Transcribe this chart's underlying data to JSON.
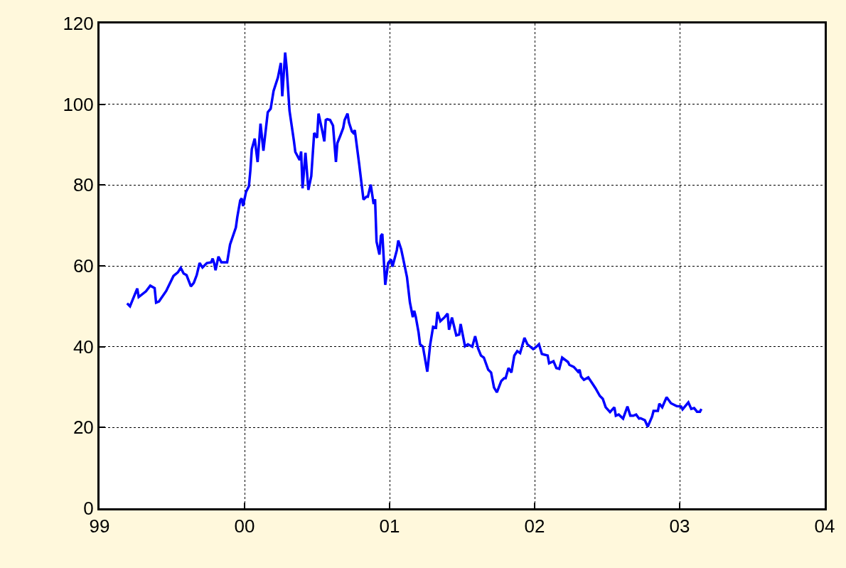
{
  "chart_data": {
    "type": "line",
    "x": [
      1999.19,
      1999.21,
      1999.26,
      1999.27,
      1999.32,
      1999.35,
      1999.38,
      1999.39,
      1999.41,
      1999.46,
      1999.51,
      1999.54,
      1999.56,
      1999.58,
      1999.6,
      1999.63,
      1999.65,
      1999.67,
      1999.69,
      1999.71,
      1999.74,
      1999.77,
      1999.78,
      1999.79,
      1999.8,
      1999.82,
      1999.84,
      1999.88,
      1999.9,
      1999.94,
      1999.95,
      1999.97,
      1999.98,
      1999.99,
      2000.01,
      2000.03,
      2000.04,
      2000.05,
      2000.07,
      2000.09,
      2000.09,
      2000.11,
      2000.13,
      2000.14,
      2000.16,
      2000.18,
      2000.2,
      2000.23,
      2000.25,
      2000.26,
      2000.28,
      2000.29,
      2000.31,
      2000.34,
      2000.35,
      2000.38,
      2000.39,
      2000.4,
      2000.42,
      2000.44,
      2000.46,
      2000.48,
      2000.5,
      2000.51,
      2000.54,
      2000.55,
      2000.56,
      2000.57,
      2000.59,
      2000.61,
      2000.63,
      2000.64,
      2000.66,
      2000.68,
      2000.69,
      2000.71,
      2000.72,
      2000.74,
      2000.75,
      2000.76,
      2000.79,
      2000.8,
      2000.82,
      2000.84,
      2000.85,
      2000.87,
      2000.89,
      2000.9,
      2000.91,
      2000.93,
      2000.94,
      2000.95,
      2000.97,
      2000.99,
      2001.01,
      2001.02,
      2001.05,
      2001.06,
      2001.08,
      2001.1,
      2001.12,
      2001.14,
      2001.16,
      2001.17,
      2001.18,
      2001.2,
      2001.21,
      2001.23,
      2001.26,
      2001.28,
      2001.3,
      2001.32,
      2001.33,
      2001.35,
      2001.38,
      2001.4,
      2001.41,
      2001.43,
      2001.46,
      2001.48,
      2001.49,
      2001.52,
      2001.54,
      2001.57,
      2001.59,
      2001.61,
      2001.63,
      2001.65,
      2001.68,
      2001.7,
      2001.72,
      2001.74,
      2001.77,
      2001.79,
      2001.8,
      2001.82,
      2001.84,
      2001.86,
      2001.88,
      2001.9,
      2001.93,
      2001.95,
      2001.99,
      2002.01,
      2002.03,
      2002.05,
      2002.09,
      2002.1,
      2002.13,
      2002.15,
      2002.17,
      2002.19,
      2002.23,
      2002.24,
      2002.27,
      2002.3,
      2002.31,
      2002.32,
      2002.34,
      2002.37,
      2002.4,
      2002.42,
      2002.45,
      2002.47,
      2002.49,
      2002.52,
      2002.55,
      2002.56,
      2002.58,
      2002.61,
      2002.64,
      2002.66,
      2002.68,
      2002.7,
      2002.72,
      2002.73,
      2002.76,
      2002.78,
      2002.81,
      2002.82,
      2002.85,
      2002.86,
      2002.88,
      2002.91,
      2002.94,
      2002.98,
      2003.01,
      2003.02,
      2003.06,
      2003.08,
      2003.1,
      2003.12,
      2003.14,
      2003.15
    ],
    "series": [
      {
        "color": "#0000ff",
        "values": [
          50.7,
          50,
          54.4,
          52.3,
          53.7,
          55.1,
          54.5,
          50.9,
          51.2,
          53.8,
          57.5,
          58.4,
          59.5,
          58.1,
          57.7,
          54.9,
          55.8,
          57.7,
          60.7,
          59.6,
          60.7,
          60.9,
          61.8,
          60.7,
          58.9,
          62.3,
          60.9,
          60.9,
          65.3,
          69.5,
          72.1,
          76.2,
          76.7,
          74.8,
          78.3,
          79.7,
          83.6,
          88.9,
          91.5,
          85.7,
          85.7,
          95.2,
          88.5,
          91.7,
          98,
          98.9,
          103.3,
          106.6,
          110.2,
          102,
          112.8,
          109.1,
          98.4,
          91,
          88.2,
          86.2,
          88.3,
          79.2,
          88,
          78.8,
          82.2,
          92.9,
          91.7,
          97.7,
          92.7,
          90.8,
          96.1,
          96.3,
          96.1,
          94.7,
          85.7,
          90.4,
          92.2,
          94.1,
          96.1,
          97.7,
          95.5,
          93.3,
          92.9,
          93.6,
          85.3,
          82.3,
          76.4,
          77.1,
          77.1,
          80.1,
          75.3,
          76.5,
          66,
          62.8,
          67.4,
          67.9,
          55.3,
          60.7,
          61.6,
          59.8,
          63.9,
          66.3,
          64.1,
          60.7,
          57.2,
          51,
          47.3,
          48.9,
          47.5,
          43.5,
          40.6,
          40,
          33.8,
          40.5,
          44.9,
          44.7,
          48.6,
          46.3,
          47.3,
          48.2,
          44.2,
          47.2,
          42.8,
          43,
          45.6,
          40.1,
          40.6,
          40,
          42.6,
          39.6,
          37.8,
          37.3,
          34.3,
          33.6,
          29.9,
          28.7,
          31.5,
          32.2,
          32.2,
          34.7,
          33.6,
          37.8,
          38.9,
          38.4,
          42.2,
          40.6,
          39.4,
          39.9,
          40.6,
          38.2,
          37.8,
          35.9,
          36.4,
          34.7,
          34.5,
          37.3,
          36.2,
          35.5,
          35,
          33.8,
          34.3,
          32.6,
          31.8,
          32.4,
          30.8,
          29.7,
          27.8,
          27.1,
          25,
          23.8,
          25,
          22.9,
          23.2,
          22.2,
          25.2,
          22.9,
          22.9,
          23.2,
          22.2,
          22.3,
          21.8,
          20.2,
          22.7,
          24.1,
          24.1,
          25.9,
          25,
          27.5,
          26,
          25.3,
          25.2,
          24.5,
          26.2,
          24.6,
          24.8,
          23.9,
          23.9,
          24.6
        ]
      }
    ],
    "xlim": [
      1999,
      2004
    ],
    "xticks": [
      {
        "value": 1999,
        "label": "99"
      },
      {
        "value": 2000,
        "label": "00"
      },
      {
        "value": 2001,
        "label": "01"
      },
      {
        "value": 2002,
        "label": "02"
      },
      {
        "value": 2003,
        "label": "03"
      },
      {
        "value": 2004,
        "label": "04"
      }
    ],
    "ylim": [
      0,
      120
    ],
    "yticks": [
      0,
      20,
      40,
      60,
      80,
      100,
      120
    ],
    "grid": true,
    "marker": "none",
    "line_style": "solid"
  }
}
